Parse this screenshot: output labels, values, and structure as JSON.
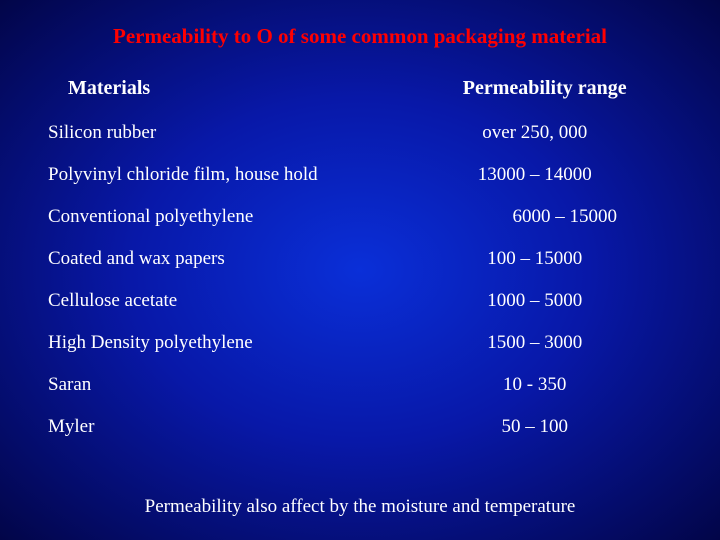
{
  "title": "Permeability to O of some common packaging material",
  "title_color": "#ff0000",
  "headers": {
    "left": "Materials",
    "right": "Permeability range"
  },
  "rows": [
    {
      "material": "Silicon rubber",
      "range": "over 250, 000",
      "indent": false
    },
    {
      "material": "Polyvinyl chloride film, house hold",
      "range": "13000 – 14000",
      "indent": false
    },
    {
      "material": "Conventional polyethylene",
      "range": "6000 – 15000",
      "indent": true
    },
    {
      "material": "Coated and wax papers",
      "range": "100 – 15000",
      "indent": false
    },
    {
      "material": "Cellulose acetate",
      "range": "1000 – 5000",
      "indent": false
    },
    {
      "material": "High Density polyethylene",
      "range": "1500 – 3000",
      "indent": false
    },
    {
      "material": "Saran",
      "range": "10 - 350",
      "indent": false
    },
    {
      "material": "Myler",
      "range": "50 – 100",
      "indent": false
    }
  ],
  "footer": "Permeability also affect by the moisture and temperature",
  "text_color": "#ffffff",
  "background": {
    "center": "#0a2fd8",
    "mid": "#0818a8",
    "edge": "#020548"
  },
  "fontsize": {
    "title": 21,
    "header": 20,
    "body": 19,
    "footer": 19
  }
}
